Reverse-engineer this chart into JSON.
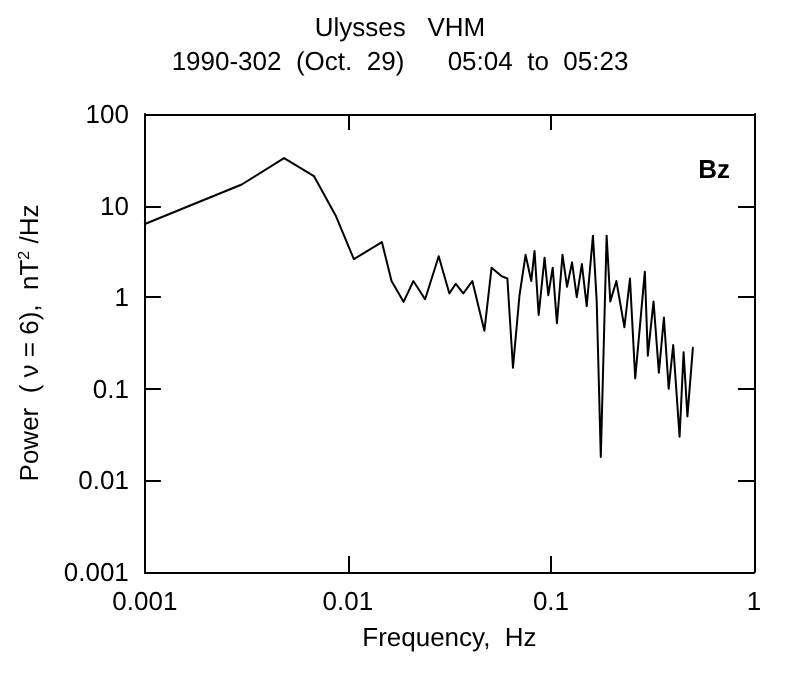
{
  "chart_data": {
    "type": "line",
    "title": "Ulysses   VHM",
    "subtitle": "1990-302  (Oct.  29)      05:04  to  05:23",
    "xlabel": "Frequency,  Hz",
    "ylabel": "Power  ( ν = 6),  nT$^{2}$ /Hz",
    "annotations": [
      "Bz"
    ],
    "log": "xy",
    "grid": false,
    "marker": "none",
    "line_style": "solid",
    "xlim": [
      0.001,
      1
    ],
    "xticks": [
      0.001,
      0.01,
      0.1,
      1
    ],
    "ylim": [
      0.001,
      100
    ],
    "yticks": [
      0.001,
      0.01,
      0.1,
      1,
      10,
      100
    ],
    "series": [
      {
        "color": "#000000",
        "x": [
          0.001,
          0.003,
          0.00485,
          0.0068,
          0.0087,
          0.0107,
          0.0147,
          0.0164,
          0.0188,
          0.021,
          0.024,
          0.028,
          0.0316,
          0.034,
          0.037,
          0.041,
          0.047,
          0.051,
          0.057,
          0.061,
          0.065,
          0.07,
          0.075,
          0.08,
          0.083,
          0.087,
          0.093,
          0.097,
          0.102,
          0.107,
          0.114,
          0.12,
          0.127,
          0.134,
          0.142,
          0.15,
          0.161,
          0.168,
          0.176,
          0.188,
          0.196,
          0.21,
          0.23,
          0.245,
          0.26,
          0.29,
          0.3,
          0.32,
          0.34,
          0.36,
          0.38,
          0.4,
          0.43,
          0.45,
          0.47,
          0.5
        ],
        "values": [
          6.3,
          17,
          33,
          21,
          7.8,
          2.6,
          4.0,
          1.5,
          0.89,
          1.5,
          0.95,
          2.8,
          1.1,
          1.4,
          1.1,
          1.5,
          0.43,
          2.1,
          1.7,
          1.6,
          0.17,
          1.05,
          2.9,
          1.5,
          3.2,
          0.64,
          2.7,
          1.05,
          2.1,
          0.52,
          2.9,
          1.3,
          2.4,
          1.0,
          2.3,
          0.8,
          4.7,
          0.9,
          0.018,
          4.7,
          0.9,
          1.5,
          0.47,
          1.6,
          0.13,
          1.9,
          0.23,
          0.9,
          0.15,
          0.6,
          0.1,
          0.3,
          0.03,
          0.25,
          0.05,
          0.28
        ]
      }
    ]
  }
}
